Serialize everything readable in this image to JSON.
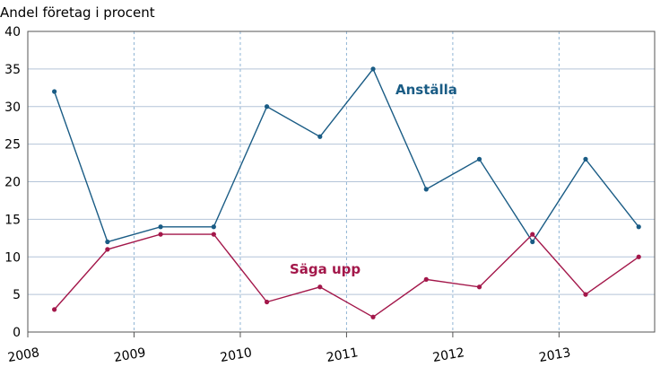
{
  "chart_data": {
    "type": "line",
    "title": "",
    "ylabel": "Andel företag i procent",
    "xlabel": "",
    "ylim": [
      0,
      40
    ],
    "yticks": [
      0,
      5,
      10,
      15,
      20,
      25,
      30,
      35,
      40
    ],
    "xlim": [
      2008,
      2013.9
    ],
    "xticks": [
      2008,
      2009,
      2010,
      2011,
      2012,
      2013
    ],
    "xtick_labels": [
      "2008",
      "2009",
      "2010",
      "2011",
      "2012",
      "2013"
    ],
    "x": [
      2008.25,
      2008.75,
      2009.25,
      2009.75,
      2010.25,
      2010.75,
      2011.25,
      2011.75,
      2012.25,
      2012.75,
      2013.25,
      2013.75
    ],
    "series": [
      {
        "name": "Anställa",
        "color": "#1a5c85",
        "values": [
          32,
          12,
          14,
          14,
          30,
          26,
          35,
          19,
          23,
          12,
          23,
          14
        ]
      },
      {
        "name": "Säga upp",
        "color": "#a3174a",
        "values": [
          3,
          11,
          13,
          13,
          4,
          6,
          2,
          7,
          6,
          13,
          5,
          10
        ]
      }
    ],
    "grid": {
      "horizontal": true,
      "vertical_dashed": true
    }
  }
}
